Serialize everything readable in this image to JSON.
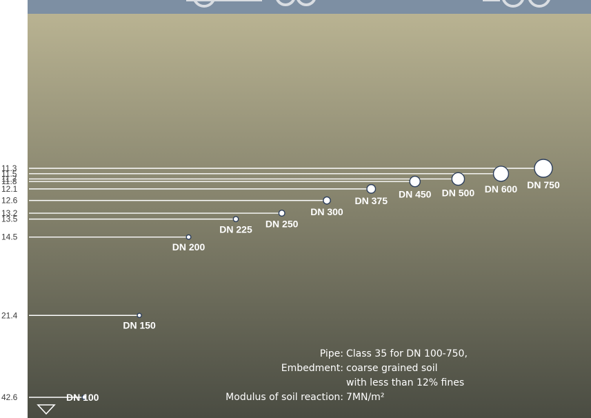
{
  "chart_data": {
    "type": "scatter",
    "title": "",
    "xlabel": "",
    "ylabel": "",
    "y_axis_direction": "downward (larger values lower)",
    "series": [
      {
        "points": [
          {
            "label": "DN 100",
            "y": 42.6
          },
          {
            "label": "DN 150",
            "y": 21.4
          },
          {
            "label": "DN 200",
            "y": 14.5
          },
          {
            "label": "DN 225",
            "y": 13.5
          },
          {
            "label": "DN 250",
            "y": 13.2
          },
          {
            "label": "DN 300",
            "y": 12.6
          },
          {
            "label": "DN 375",
            "y": 12.1
          },
          {
            "label": "DN 450",
            "y": 11.8
          },
          {
            "label": "DN 500",
            "y": 11.7
          },
          {
            "label": "DN 600",
            "y": 11.5
          },
          {
            "label": "DN 750",
            "y": 11.3
          }
        ]
      }
    ],
    "tick_labels": [
      "11.3",
      "11.5",
      "11.7",
      "11.8",
      "12.1",
      "12.6",
      "13.2",
      "13.5",
      "14.5",
      "21.4",
      "42.6"
    ],
    "notes": [
      {
        "key": "Pipe:",
        "value": "Class 35 for DN 100-750,"
      },
      {
        "key": "Embedment:",
        "value": "coarse grained soil"
      },
      {
        "key": "",
        "value": "with less than 12% fines"
      },
      {
        "key": "Modulus of soil reaction:",
        "value": "7MN/m²"
      }
    ],
    "colors": {
      "background_top": "#b9b392",
      "background_bottom": "#4a4c42",
      "header_bar": "#7d8fa3",
      "lines": "#ffffff",
      "markers": "#ffffff",
      "marker_outline": "#2c3e5c"
    }
  }
}
